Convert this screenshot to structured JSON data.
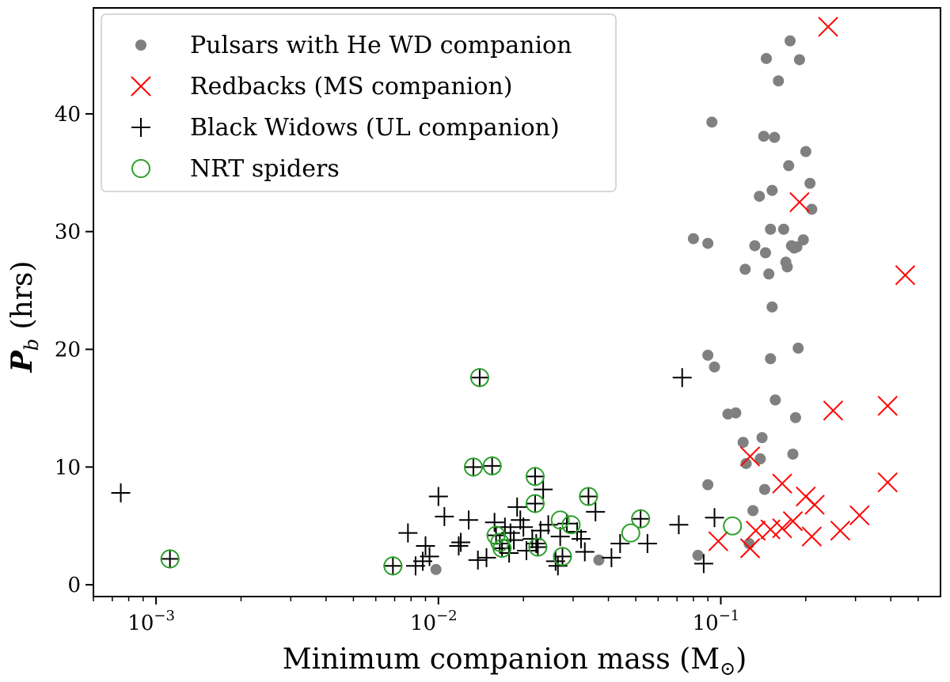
{
  "chart_data": {
    "type": "scatter",
    "xscale": "log",
    "xlim": [
      0.0006,
      0.6
    ],
    "ylim": [
      -1,
      49
    ],
    "xlabel": {
      "main": "Minimum companion mass (M",
      "sub": "⊙",
      "close": ")"
    },
    "ylabel": {
      "symbol": "P",
      "subscript": "b",
      "unit": " (hrs)"
    },
    "xticks": [
      {
        "value": 0.001,
        "base": "10",
        "exp": "−3"
      },
      {
        "value": 0.01,
        "base": "10",
        "exp": "−2"
      },
      {
        "value": 0.1,
        "base": "10",
        "exp": "−1"
      }
    ],
    "yticks": [
      0,
      10,
      20,
      30,
      40
    ],
    "legend_position": "top-left",
    "grid": false,
    "series": [
      {
        "name": "Pulsars with He WD companion",
        "marker": "dot",
        "color": "#808080",
        "points": [
          [
            0.0098,
            1.3
          ],
          [
            0.037,
            2.1
          ],
          [
            0.083,
            2.5
          ],
          [
            0.09,
            8.5
          ],
          [
            0.09,
            19.5
          ],
          [
            0.09,
            29.0
          ],
          [
            0.093,
            39.3
          ],
          [
            0.095,
            18.5
          ],
          [
            0.08,
            29.4
          ],
          [
            0.106,
            14.5
          ],
          [
            0.113,
            14.6
          ],
          [
            0.12,
            12.1
          ],
          [
            0.122,
            26.8
          ],
          [
            0.123,
            10.3
          ],
          [
            0.126,
            3.5
          ],
          [
            0.13,
            6.3
          ],
          [
            0.132,
            28.8
          ],
          [
            0.137,
            33.0
          ],
          [
            0.138,
            10.7
          ],
          [
            0.14,
            12.5
          ],
          [
            0.142,
            38.1
          ],
          [
            0.143,
            8.1
          ],
          [
            0.144,
            28.2
          ],
          [
            0.145,
            44.7
          ],
          [
            0.148,
            26.4
          ],
          [
            0.15,
            19.2
          ],
          [
            0.15,
            30.2
          ],
          [
            0.152,
            33.5
          ],
          [
            0.152,
            23.6
          ],
          [
            0.155,
            38.0
          ],
          [
            0.156,
            15.7
          ],
          [
            0.16,
            42.8
          ],
          [
            0.167,
            30.2
          ],
          [
            0.17,
            27.4
          ],
          [
            0.172,
            27.0
          ],
          [
            0.174,
            35.6
          ],
          [
            0.176,
            46.2
          ],
          [
            0.178,
            28.8
          ],
          [
            0.18,
            11.1
          ],
          [
            0.182,
            28.6
          ],
          [
            0.184,
            14.2
          ],
          [
            0.186,
            28.7
          ],
          [
            0.188,
            20.1
          ],
          [
            0.19,
            44.6
          ],
          [
            0.196,
            29.3
          ],
          [
            0.2,
            36.8
          ],
          [
            0.207,
            34.1
          ],
          [
            0.21,
            31.9
          ]
        ]
      },
      {
        "name": "Redbacks (MS companion)",
        "marker": "x",
        "color": "#ff0000",
        "points": [
          [
            0.24,
            47.4
          ],
          [
            0.19,
            32.5
          ],
          [
            0.45,
            26.3
          ],
          [
            0.25,
            14.8
          ],
          [
            0.39,
            15.2
          ],
          [
            0.127,
            10.9
          ],
          [
            0.165,
            8.6
          ],
          [
            0.39,
            8.7
          ],
          [
            0.098,
            3.7
          ],
          [
            0.127,
            3.1
          ],
          [
            0.133,
            4.6
          ],
          [
            0.15,
            4.7
          ],
          [
            0.165,
            4.8
          ],
          [
            0.18,
            5.4
          ],
          [
            0.2,
            7.5
          ],
          [
            0.215,
            6.8
          ],
          [
            0.21,
            4.1
          ],
          [
            0.265,
            4.6
          ],
          [
            0.31,
            5.9
          ]
        ]
      },
      {
        "name": "Black Widows (UL companion)",
        "marker": "plus",
        "color": "#000000",
        "points": [
          [
            0.00075,
            7.8
          ],
          [
            0.00112,
            2.2
          ],
          [
            0.0069,
            1.6
          ],
          [
            0.0078,
            4.4
          ],
          [
            0.0083,
            1.6
          ],
          [
            0.0088,
            2.0
          ],
          [
            0.009,
            3.3
          ],
          [
            0.0093,
            2.4
          ],
          [
            0.01,
            7.5
          ],
          [
            0.0105,
            5.8
          ],
          [
            0.0118,
            3.3
          ],
          [
            0.012,
            3.6
          ],
          [
            0.0128,
            5.5
          ],
          [
            0.0133,
            10.0
          ],
          [
            0.0138,
            2.1
          ],
          [
            0.014,
            17.6
          ],
          [
            0.0148,
            2.3
          ],
          [
            0.0155,
            10.1
          ],
          [
            0.0158,
            5.3
          ],
          [
            0.016,
            4.2
          ],
          [
            0.0165,
            3.5
          ],
          [
            0.0168,
            3.1
          ],
          [
            0.0172,
            4.9
          ],
          [
            0.0178,
            2.7
          ],
          [
            0.018,
            4.4
          ],
          [
            0.0185,
            3.8
          ],
          [
            0.019,
            6.6
          ],
          [
            0.0195,
            5.5
          ],
          [
            0.02,
            4.9
          ],
          [
            0.0205,
            2.9
          ],
          [
            0.0215,
            3.9
          ],
          [
            0.022,
            9.2
          ],
          [
            0.022,
            6.9
          ],
          [
            0.0222,
            3.5
          ],
          [
            0.0225,
            3.2
          ],
          [
            0.023,
            4.6
          ],
          [
            0.0235,
            8.1
          ],
          [
            0.0245,
            5.1
          ],
          [
            0.026,
            2.0
          ],
          [
            0.0265,
            1.6
          ],
          [
            0.027,
            4.1
          ],
          [
            0.0275,
            2.4
          ],
          [
            0.0285,
            5.2
          ],
          [
            0.031,
            4.5
          ],
          [
            0.032,
            3.9
          ],
          [
            0.033,
            2.8
          ],
          [
            0.034,
            7.5
          ],
          [
            0.036,
            6.2
          ],
          [
            0.041,
            2.3
          ],
          [
            0.044,
            3.5
          ],
          [
            0.052,
            5.6
          ],
          [
            0.055,
            3.5
          ],
          [
            0.071,
            5.1
          ],
          [
            0.073,
            17.6
          ],
          [
            0.087,
            1.8
          ],
          [
            0.095,
            5.7
          ]
        ]
      },
      {
        "name": "NRT spiders",
        "marker": "circle",
        "color": "#2ca02c",
        "points": [
          [
            0.00112,
            2.2
          ],
          [
            0.0069,
            1.6
          ],
          [
            0.0133,
            10.0
          ],
          [
            0.014,
            17.6
          ],
          [
            0.0155,
            10.1
          ],
          [
            0.016,
            4.2
          ],
          [
            0.0165,
            3.6
          ],
          [
            0.0168,
            3.1
          ],
          [
            0.022,
            9.2
          ],
          [
            0.022,
            6.9
          ],
          [
            0.0225,
            3.2
          ],
          [
            0.027,
            5.5
          ],
          [
            0.0275,
            2.4
          ],
          [
            0.0295,
            5.1
          ],
          [
            0.034,
            7.5
          ],
          [
            0.048,
            4.4
          ],
          [
            0.052,
            5.6
          ],
          [
            0.11,
            5.0
          ]
        ]
      }
    ]
  }
}
